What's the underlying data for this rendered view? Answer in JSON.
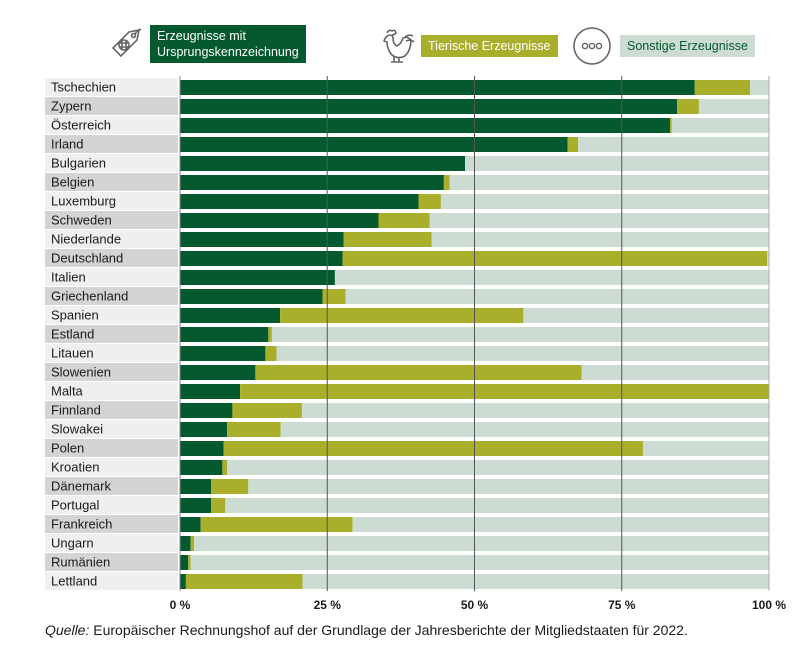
{
  "legend": {
    "items": [
      {
        "key": "origin",
        "label_line1": "Erzeugnisse mit",
        "label_line2": "Ursprungskennzeichnung",
        "icon": "price-tag-icon",
        "color": "#05592e"
      },
      {
        "key": "animal",
        "label": "Tierische Erzeugnisse",
        "icon": "rooster-icon",
        "color": "#a9af2b"
      },
      {
        "key": "other",
        "label": "Sonstige Erzeugnisse",
        "icon": "more-dots-icon",
        "color": "#cddcd2"
      }
    ]
  },
  "caption": {
    "source_label": "Quelle:",
    "source_text": " Europäischer Rechnungshof auf der Grundlage der Jahresberichte der Mitgliedstaaten für 2022."
  },
  "chart_data": {
    "type": "bar",
    "orientation": "horizontal",
    "stacked": true,
    "title": "",
    "xlabel": "",
    "ylabel": "",
    "xlim": [
      0,
      100
    ],
    "x_ticks": [
      0,
      25,
      50,
      75,
      100
    ],
    "x_tick_labels": [
      "0 %",
      "25 %",
      "50 %",
      "75 %",
      "100 %"
    ],
    "grid": "vertical lines at 25, 50, 75",
    "legend_position": "top",
    "categories": [
      "Tschechien",
      "Zypern",
      "Österreich",
      "Irland",
      "Bulgarien",
      "Belgien",
      "Luxemburg",
      "Schweden",
      "Niederlande",
      "Deutschland",
      "Italien",
      "Griechenland",
      "Spanien",
      "Estland",
      "Litauen",
      "Slowenien",
      "Malta",
      "Finnland",
      "Slowakei",
      "Polen",
      "Kroatien",
      "Dänemark",
      "Portugal",
      "Frankreich",
      "Ungarn",
      "Rumänien",
      "Lettland"
    ],
    "series": [
      {
        "name": "Erzeugnisse mit Ursprungskennzeichnung",
        "color": "#05592e",
        "values": [
          87.4,
          84.4,
          83.2,
          65.8,
          48.4,
          44.8,
          40.5,
          33.7,
          27.8,
          27.6,
          26.3,
          24.2,
          17.0,
          15.0,
          14.5,
          12.8,
          10.2,
          8.9,
          8.0,
          7.4,
          7.2,
          5.3,
          5.3,
          3.5,
          1.8,
          1.4,
          1.0
        ]
      },
      {
        "name": "Tierische Erzeugnisse",
        "color": "#a9af2b",
        "values": [
          9.4,
          3.7,
          0.3,
          1.8,
          0.0,
          1.0,
          3.8,
          8.7,
          14.9,
          72.1,
          0.0,
          3.9,
          41.3,
          0.6,
          1.9,
          55.4,
          89.8,
          11.8,
          9.1,
          71.2,
          0.8,
          6.3,
          2.4,
          25.8,
          0.6,
          0.4,
          19.8
        ]
      },
      {
        "name": "Sonstige Erzeugnisse",
        "color": "#cddcd2",
        "values": [
          3.2,
          11.9,
          16.5,
          32.4,
          51.6,
          54.2,
          55.7,
          57.6,
          57.3,
          0.3,
          73.7,
          71.9,
          41.7,
          84.4,
          83.6,
          31.8,
          0.0,
          79.3,
          82.9,
          21.4,
          92.0,
          88.4,
          92.3,
          70.7,
          97.6,
          98.2,
          79.2
        ]
      }
    ]
  }
}
